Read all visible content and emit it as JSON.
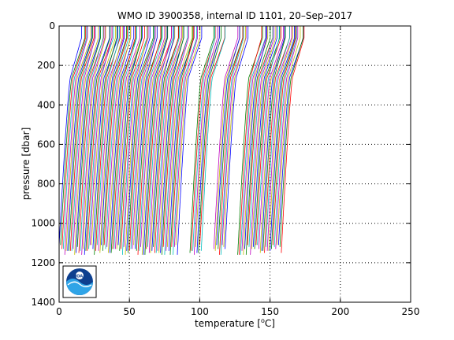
{
  "chart_data": {
    "type": "line",
    "title": "WMO ID 3900358, internal ID 1101, 20–Sep–2017",
    "xlabel": "temperature [°C]",
    "xlabel_parts": [
      "temperature [",
      "o",
      "C]"
    ],
    "ylabel": "pressure [dbar]",
    "xlim": [
      0,
      250
    ],
    "ylim": [
      0,
      1400
    ],
    "y_reversed": true,
    "x_ticks": [
      0,
      50,
      100,
      150,
      200,
      250
    ],
    "y_ticks": [
      0,
      200,
      400,
      600,
      800,
      1000,
      1200,
      1400
    ],
    "grid": true,
    "grid_style": "dotted",
    "profiles": {
      "count": 135,
      "offset_per_profile_degC": 1.0,
      "surface_temperature_degC": [
        19.5,
        22.0
      ],
      "deep_temperature_degC": 4.0,
      "max_pressure_dbar": [
        1110,
        1170
      ],
      "color_cycle": [
        "#0000ff",
        "#008000",
        "#ff0000",
        "#00bfbf",
        "#bf00bf",
        "#bfbf00"
      ],
      "gaps_at_profile_index": [
        85,
        94,
        103,
        145,
        163
      ]
    },
    "logo": {
      "name": "noaa-logo",
      "text": "NOAA",
      "position": "bottom-left"
    }
  }
}
